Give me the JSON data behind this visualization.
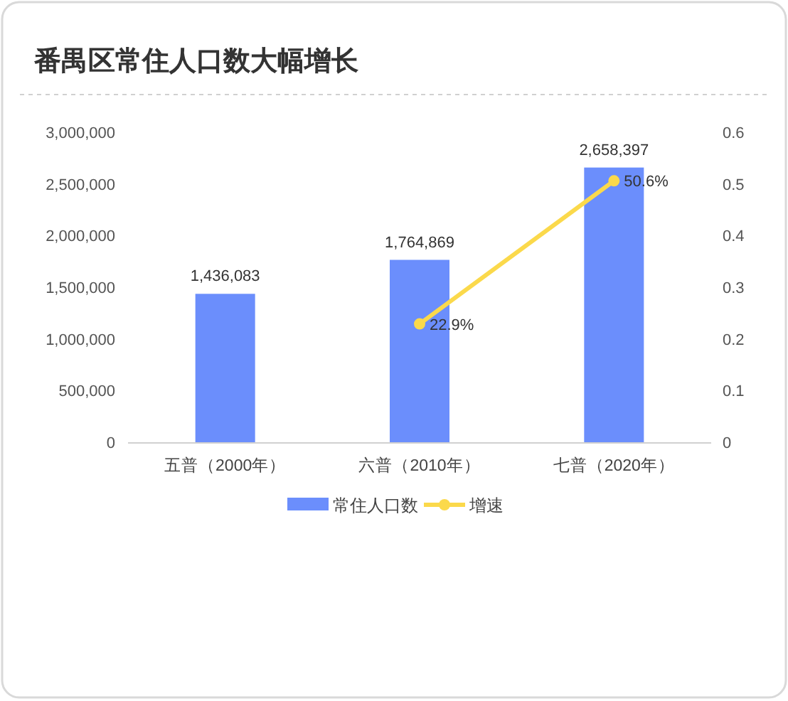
{
  "chart_data": {
    "type": "bar",
    "title": "番禺区常住人口数大幅增长",
    "categories": [
      "五普（2000年）",
      "六普（2010年）",
      "七普（2020年）"
    ],
    "series": [
      {
        "name": "常住人口数",
        "color": "#6b8efc",
        "values": [
          1436083,
          1764869,
          2658397
        ],
        "value_labels": [
          "1,436,083",
          "1,764,869",
          "2,658,397"
        ]
      },
      {
        "name": "增速",
        "type": "line",
        "axis": "y2",
        "color": "#fbd94b",
        "marker": "circle",
        "values": [
          null,
          0.229,
          0.506
        ],
        "value_labels": [
          null,
          "22.9%",
          "50.6%"
        ]
      }
    ],
    "ylim": [
      0,
      3000000
    ],
    "yticks": [
      0,
      {
        "value": 500000,
        "label": "500,000"
      },
      {
        "value": 1000000,
        "label": "1,000,000"
      },
      {
        "value": 1500000,
        "label": "1,500,000"
      },
      {
        "value": 2000000,
        "label": "2,000,000"
      },
      {
        "value": 2500000,
        "label": "2,500,000"
      },
      {
        "value": 3000000,
        "label": "3,000,000"
      }
    ],
    "y2lim": [
      0,
      0.6
    ],
    "y2ticks": [
      0,
      0.1,
      0.2,
      0.3,
      0.4,
      0.5,
      0.6
    ],
    "legend": "bottom",
    "grid": false
  }
}
